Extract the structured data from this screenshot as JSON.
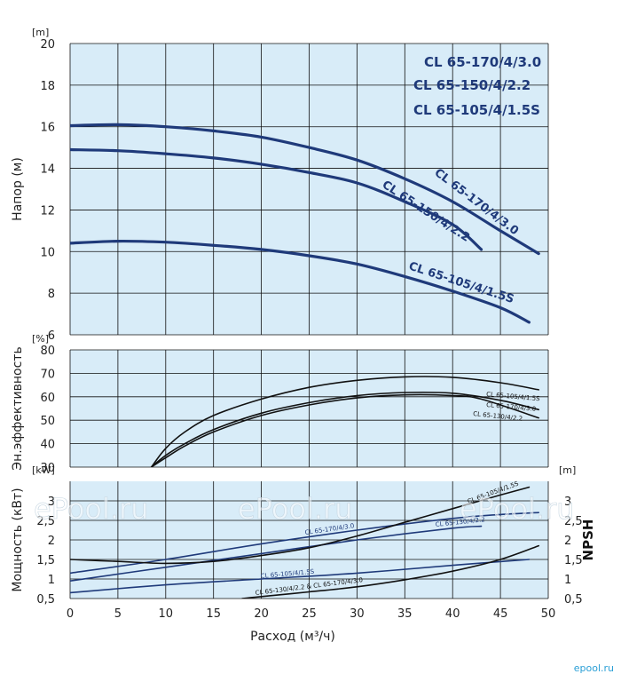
{
  "chart_data": [
    {
      "type": "line",
      "title": "",
      "ylabel": "Напор (м)",
      "y_unit": "[m]",
      "xlim": [
        0,
        50
      ],
      "ylim": [
        6,
        20
      ],
      "x_ticks": [
        0,
        5,
        10,
        15,
        20,
        25,
        30,
        35,
        40,
        45,
        50
      ],
      "y_ticks": [
        6,
        8,
        10,
        12,
        14,
        16,
        18,
        20
      ],
      "grid": true,
      "legend": {
        "placement": "top-right",
        "entries": [
          "CL 65-170/4/3.0",
          "CL 65-150/4/2.2",
          "CL 65-105/4/1.5S"
        ]
      },
      "series": [
        {
          "name": "CL 65-170/4/3.0",
          "color": "#1f3a7a",
          "x": [
            0,
            5,
            10,
            15,
            20,
            25,
            30,
            35,
            40,
            45,
            49
          ],
          "y": [
            16.05,
            16.1,
            16.0,
            15.8,
            15.5,
            15.0,
            14.4,
            13.5,
            12.4,
            11.0,
            9.9
          ]
        },
        {
          "name": "CL 65-150/4/2.2",
          "color": "#1f3a7a",
          "x": [
            0,
            5,
            10,
            15,
            20,
            25,
            30,
            35,
            40,
            43
          ],
          "y": [
            14.9,
            14.85,
            14.7,
            14.5,
            14.2,
            13.8,
            13.3,
            12.4,
            11.3,
            10.1
          ]
        },
        {
          "name": "CL 65-105/4/1.5S",
          "color": "#1f3a7a",
          "x": [
            0,
            5,
            10,
            15,
            20,
            25,
            30,
            35,
            40,
            45,
            48
          ],
          "y": [
            10.4,
            10.5,
            10.45,
            10.3,
            10.1,
            9.8,
            9.4,
            8.8,
            8.1,
            7.3,
            6.6
          ]
        }
      ],
      "annotations": [
        "CL 65-170/4/3.0",
        "CL 65-150/4/2.2",
        "CL 65-105/4/1.5S"
      ]
    },
    {
      "type": "line",
      "title": "",
      "ylabel": "Эн.эффективность",
      "y_unit": "[%]",
      "xlim": [
        0,
        50
      ],
      "ylim": [
        30,
        80
      ],
      "y_ticks": [
        30,
        40,
        50,
        60,
        70,
        80
      ],
      "grid": true,
      "series": [
        {
          "name": "CL 65-105/4/1.5S",
          "color": "#111111",
          "x": [
            8.5,
            10,
            12,
            15,
            20,
            25,
            30,
            35,
            40,
            45,
            49
          ],
          "y": [
            30,
            38,
            45,
            52,
            59,
            64,
            67,
            68.5,
            68.3,
            66,
            63
          ]
        },
        {
          "name": "CL 65-170/4/3.0",
          "color": "#111111",
          "x": [
            8.5,
            10,
            12,
            15,
            20,
            25,
            30,
            35,
            40,
            45,
            49
          ],
          "y": [
            30,
            35,
            40,
            46,
            53,
            57.5,
            60.5,
            61.8,
            61.5,
            58.5,
            54.5
          ]
        },
        {
          "name": "CL 65-130/4/2.2",
          "color": "#111111",
          "x": [
            8.5,
            10,
            12,
            15,
            20,
            25,
            30,
            35,
            40,
            43,
            49
          ],
          "y": [
            30,
            34,
            39,
            45,
            52,
            56.5,
            59.5,
            60.8,
            60.5,
            59,
            51
          ]
        }
      ],
      "annotations": [
        "CL 65-105/4/1.5S",
        "CL 65-170/4/3.0",
        "CL 65-130/4/2.2"
      ]
    },
    {
      "type": "line",
      "title": "",
      "xlabel": "Расход (м³/ч)",
      "ylabel": "Мощность (кВт)",
      "y_unit": "[kW]",
      "y2label": "NPSH",
      "y2_unit": "[m]",
      "xlim": [
        0,
        50
      ],
      "ylim": [
        0.5,
        3.5
      ],
      "y_ticks": [
        0.5,
        1,
        1.5,
        2,
        2.5,
        3
      ],
      "y_tick_labels": [
        "0,5",
        "1",
        "1,5",
        "2",
        "2,5",
        "3"
      ],
      "y2_tick_labels": [
        "0,5",
        "1",
        "1,5",
        "2",
        "2,5",
        "3"
      ],
      "x_ticks": [
        0,
        5,
        10,
        15,
        20,
        25,
        30,
        35,
        40,
        45,
        50
      ],
      "grid": true,
      "series": [
        {
          "name": "CL 65-170/4/3.0",
          "color": "#1f3a7a",
          "x": [
            0,
            10,
            20,
            30,
            40,
            45,
            49
          ],
          "y": [
            1.15,
            1.5,
            1.9,
            2.25,
            2.55,
            2.65,
            2.7
          ]
        },
        {
          "name": "CL 65-130/4/2.2",
          "color": "#1f3a7a",
          "x": [
            0,
            10,
            20,
            30,
            40,
            43
          ],
          "y": [
            0.95,
            1.3,
            1.65,
            2.0,
            2.3,
            2.35
          ]
        },
        {
          "name": "CL 65-105/4/1.5S",
          "color": "#1f3a7a",
          "x": [
            0,
            10,
            20,
            30,
            40,
            48
          ],
          "y": [
            0.65,
            0.85,
            1.0,
            1.15,
            1.35,
            1.5
          ]
        },
        {
          "name": "CL 65-105/4/1.5S (NPSH)",
          "color": "#111111",
          "x": [
            0,
            5,
            10,
            15,
            20,
            25,
            30,
            35,
            40,
            45,
            48
          ],
          "y": [
            1.5,
            1.45,
            1.4,
            1.45,
            1.6,
            1.8,
            2.1,
            2.45,
            2.8,
            3.15,
            3.35
          ]
        },
        {
          "name": "CL 65-130/4/2.2 & CL 65-170/4/3.0 (NPSH)",
          "color": "#111111",
          "x": [
            18,
            20,
            25,
            30,
            35,
            40,
            45,
            49
          ],
          "y": [
            0.5,
            0.55,
            0.67,
            0.8,
            0.98,
            1.2,
            1.5,
            1.85
          ]
        }
      ],
      "annotations": [
        "CL 65-105/4/1.5S",
        "CL 65-170/4/3.0",
        "CL 65-130/4/2.2",
        "CL 65-105/4/1.5S",
        "CL 65-130/4/2.2 & CL 65-170/4/3.0"
      ]
    }
  ],
  "watermarks": [
    "ePool.ru",
    "ePool.ru",
    "ePool.ru"
  ],
  "logo_text": "epool.ru",
  "colors": {
    "plot_bg": "#d8ecf8",
    "grid": "#111111",
    "curve_blue": "#1f3a7a",
    "curve_black": "#111111",
    "logo": "#2a9fd6"
  }
}
